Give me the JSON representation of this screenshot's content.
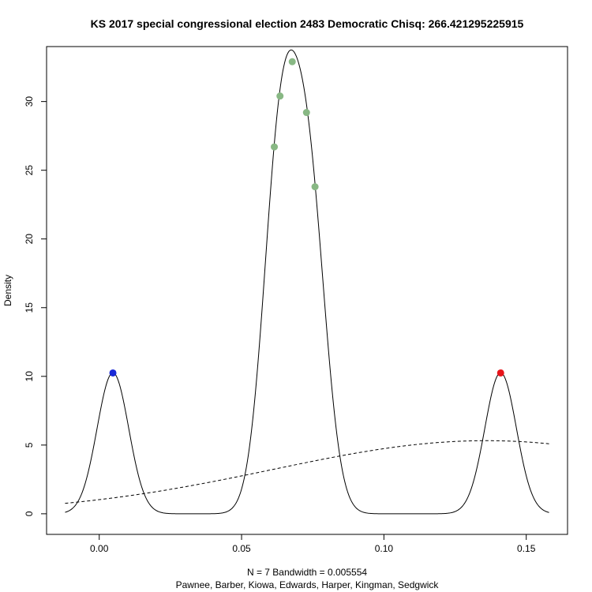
{
  "chart_data": {
    "type": "line",
    "title": "KS 2017 special congressional election 2483 Democratic Chisq: 266.421295225915",
    "xlabel_line1": "N = 7   Bandwidth = 0.005554",
    "xlabel_line2": "Pawnee, Barber, Kiowa, Edwards, Harper, Kingman, Sedgwick",
    "ylabel": "Density",
    "xlim": [
      -0.0185,
      0.1645
    ],
    "ylim": [
      -1.5,
      34.0
    ],
    "x_ticks": [
      0.0,
      0.05,
      0.1,
      0.15
    ],
    "x_tick_labels": [
      "0.00",
      "0.05",
      "0.10",
      "0.15"
    ],
    "y_ticks": [
      0,
      5,
      10,
      15,
      20,
      25,
      30
    ],
    "y_tick_labels": [
      "0",
      "5",
      "10",
      "15",
      "20",
      "25",
      "30"
    ],
    "kde": {
      "bandwidth": 0.005554,
      "from": -0.012,
      "to": 0.158,
      "points": [
        0.0048,
        0.0615,
        0.0635,
        0.0678,
        0.0728,
        0.0758,
        0.141
      ]
    },
    "reference_curve": {
      "style": "dashed",
      "mean": 0.136,
      "sd": 0.075,
      "from": -0.012,
      "to": 0.158
    },
    "series": [
      {
        "color": "#1a2ad8",
        "points": [
          {
            "x": 0.0048,
            "y": 10.25
          }
        ]
      },
      {
        "color": "#88b884",
        "points": [
          {
            "x": 0.0615,
            "y": 26.7
          },
          {
            "x": 0.0635,
            "y": 30.4
          },
          {
            "x": 0.0678,
            "y": 32.9
          },
          {
            "x": 0.0728,
            "y": 29.2
          },
          {
            "x": 0.0758,
            "y": 23.8
          }
        ]
      },
      {
        "color": "#e8141a",
        "points": [
          {
            "x": 0.141,
            "y": 10.25
          }
        ]
      }
    ],
    "grid": false,
    "legend": "none"
  }
}
